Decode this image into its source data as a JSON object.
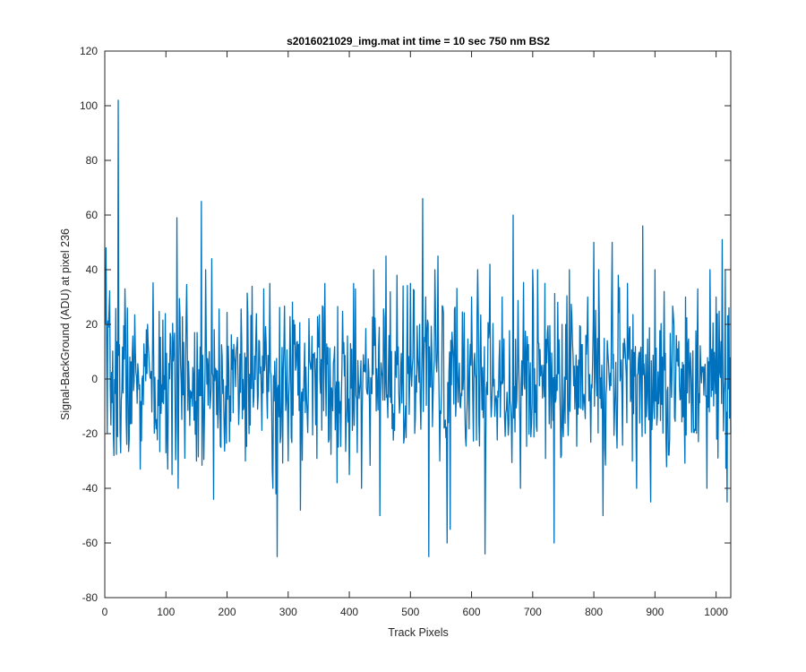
{
  "chart_data": {
    "type": "line",
    "title": "s2016021029_img.mat int time = 10 sec  750 nm BS2",
    "xlabel": "Track Pixels",
    "ylabel": "Signal-BackGround (ADU) at pixel 236",
    "xlim": [
      0,
      1024
    ],
    "ylim": [
      -80,
      120
    ],
    "xticks": [
      0,
      100,
      200,
      300,
      400,
      500,
      600,
      700,
      800,
      900,
      1000
    ],
    "yticks": [
      -80,
      -60,
      -40,
      -20,
      0,
      20,
      40,
      60,
      80,
      100,
      120
    ],
    "xtick_labels": [
      "0",
      "100",
      "200",
      "300",
      "400",
      "500",
      "600",
      "700",
      "800",
      "900",
      "1000"
    ],
    "ytick_labels": [
      "-80",
      "-60",
      "-40",
      "-20",
      "0",
      "20",
      "40",
      "60",
      "80",
      "100",
      "120"
    ],
    "grid": false,
    "box": true,
    "series": [
      {
        "color": "#0072BD",
        "x_start": 1,
        "x_step": 1,
        "noise_sd": 14,
        "noise_seed": 7,
        "noise_min": -34,
        "noise_max": 36,
        "peaks": [
          [
            2,
            48
          ],
          [
            4,
            -20
          ],
          [
            7,
            25
          ],
          [
            15,
            -28
          ],
          [
            22,
            102
          ],
          [
            26,
            -27
          ],
          [
            33,
            33
          ],
          [
            40,
            -22
          ],
          [
            58,
            -33
          ],
          [
            70,
            20
          ],
          [
            100,
            -27
          ],
          [
            110,
            -35
          ],
          [
            118,
            59
          ],
          [
            120,
            -40
          ],
          [
            150,
            -30
          ],
          [
            158,
            65
          ],
          [
            165,
            40
          ],
          [
            175,
            44
          ],
          [
            178,
            -44
          ],
          [
            190,
            -25
          ],
          [
            230,
            -30
          ],
          [
            260,
            33
          ],
          [
            270,
            35
          ],
          [
            275,
            -40
          ],
          [
            280,
            -42
          ],
          [
            282,
            -65
          ],
          [
            300,
            -30
          ],
          [
            320,
            -48
          ],
          [
            360,
            35
          ],
          [
            380,
            -38
          ],
          [
            400,
            -35
          ],
          [
            410,
            33
          ],
          [
            420,
            -40
          ],
          [
            440,
            40
          ],
          [
            450,
            -50
          ],
          [
            460,
            45
          ],
          [
            478,
            38
          ],
          [
            500,
            35
          ],
          [
            515,
            20
          ],
          [
            520,
            66
          ],
          [
            525,
            30
          ],
          [
            530,
            -65
          ],
          [
            540,
            40
          ],
          [
            545,
            45
          ],
          [
            548,
            -30
          ],
          [
            560,
            -60
          ],
          [
            565,
            -55
          ],
          [
            600,
            30
          ],
          [
            610,
            40
          ],
          [
            622,
            -64
          ],
          [
            630,
            42
          ],
          [
            650,
            30
          ],
          [
            668,
            60
          ],
          [
            680,
            -40
          ],
          [
            700,
            40
          ],
          [
            708,
            40
          ],
          [
            720,
            35
          ],
          [
            735,
            -60
          ],
          [
            760,
            40
          ],
          [
            790,
            30
          ],
          [
            800,
            50
          ],
          [
            808,
            40
          ],
          [
            815,
            -50
          ],
          [
            830,
            50
          ],
          [
            840,
            38
          ],
          [
            855,
            35
          ],
          [
            870,
            -40
          ],
          [
            880,
            56
          ],
          [
            893,
            -45
          ],
          [
            900,
            40
          ],
          [
            915,
            32
          ],
          [
            950,
            30
          ],
          [
            970,
            33
          ],
          [
            985,
            -40
          ],
          [
            990,
            40
          ],
          [
            1000,
            30
          ],
          [
            1010,
            51
          ],
          [
            1015,
            40
          ],
          [
            1018,
            -45
          ],
          [
            1024,
            -20
          ]
        ]
      }
    ]
  }
}
